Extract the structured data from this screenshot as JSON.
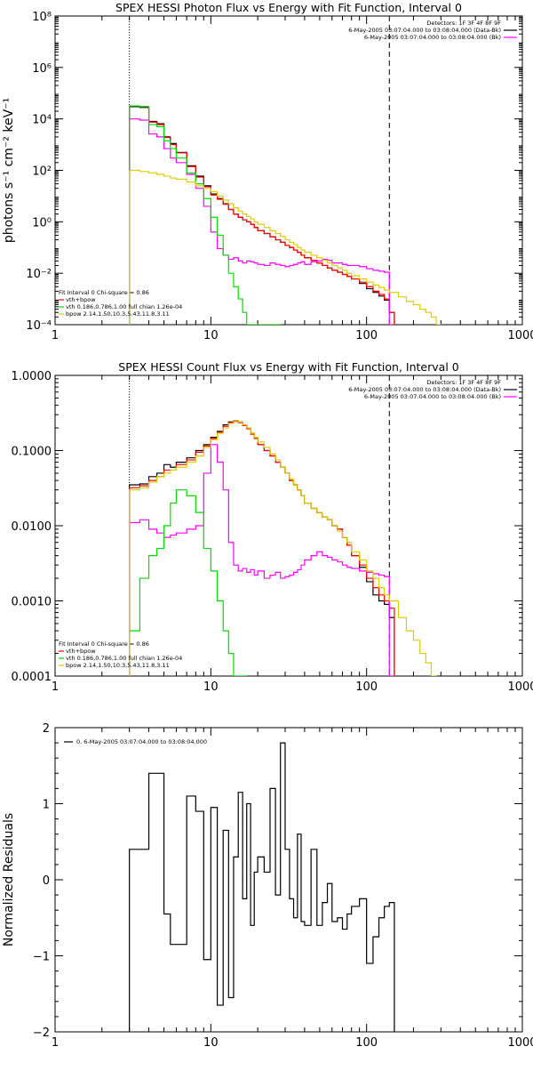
{
  "chart_data": [
    {
      "type": "line",
      "title": "SPEX HESSI Photon Flux vs Energy with Fit Function, Interval 0",
      "ylabel": "photons s⁻¹ cm⁻² keV⁻¹",
      "xlabel": "",
      "xscale": "log",
      "yscale": "log",
      "xlim": [
        1,
        1000
      ],
      "ylim": [
        0.0001,
        100000000
      ],
      "x_tick_labels": [
        "1",
        "10",
        "100",
        "1000"
      ],
      "y_tick_labels": [
        "10⁻⁴",
        "10⁻²",
        "10⁰",
        "10²",
        "10⁴",
        "10⁶",
        "10⁸"
      ],
      "legend_top_right": [
        "Detectors: 1F 3F 4F 8F 9F",
        "6-May-2005 03:07:04.000 to 03:08:04.000 (Data-Bk)",
        "6-May-2005 03:07:04.000 to 03:08:04.000 (Bk)"
      ],
      "legend_bottom_left": [
        "Fit Interval 0   Chi-square = 0.86",
        "vth+bpow",
        "vth 0.186,0.786,1.00  full chian 1.26e-04",
        "bpow 2.14,1.50,10.3,5.43,11.8,3.11"
      ],
      "vlines": [
        3,
        140
      ],
      "series": [
        {
          "color": "#000000",
          "x": [
            3,
            3.5,
            4,
            4.5,
            5,
            5.5,
            6,
            7,
            8,
            9,
            10,
            11,
            12,
            13,
            14,
            15,
            16,
            17,
            18,
            19,
            20,
            22,
            24,
            26,
            28,
            30,
            32,
            34,
            36,
            38,
            40,
            44,
            48,
            52,
            56,
            60,
            65,
            70,
            75,
            80,
            90,
            100,
            110,
            120,
            130,
            140
          ],
          "y": [
            30000,
            28000,
            8000,
            6500,
            2000,
            1100,
            500,
            150,
            60,
            25,
            12,
            8,
            5,
            3,
            2,
            1.5,
            1.2,
            1,
            0.8,
            0.6,
            0.45,
            0.35,
            0.26,
            0.2,
            0.16,
            0.12,
            0.1,
            0.08,
            0.065,
            0.05,
            0.04,
            0.032,
            0.025,
            0.02,
            0.016,
            0.013,
            0.011,
            0.009,
            0.0075,
            0.006,
            0.004,
            0.0025,
            0.0018,
            0.0013,
            0.0009,
            0.0003
          ]
        },
        {
          "color": "#ff0000",
          "x": [
            3,
            3.5,
            4,
            4.5,
            5,
            5.5,
            6,
            7,
            8,
            9,
            10,
            11,
            12,
            13,
            14,
            15,
            16,
            17,
            18,
            19,
            20,
            22,
            24,
            26,
            28,
            30,
            32,
            34,
            36,
            38,
            40,
            44,
            48,
            52,
            56,
            60,
            65,
            70,
            75,
            80,
            90,
            100,
            110,
            120,
            130,
            140
          ],
          "y": [
            32000,
            30000,
            7500,
            6000,
            1900,
            1000,
            480,
            140,
            55,
            23,
            11,
            7.5,
            4.8,
            3,
            2,
            1.5,
            1.2,
            1,
            0.8,
            0.6,
            0.45,
            0.35,
            0.26,
            0.2,
            0.16,
            0.12,
            0.1,
            0.08,
            0.065,
            0.05,
            0.04,
            0.032,
            0.025,
            0.02,
            0.016,
            0.013,
            0.011,
            0.009,
            0.0075,
            0.006,
            0.0045,
            0.003,
            0.002,
            0.0015,
            0.001,
            0.0003
          ]
        },
        {
          "color": "#ff00ff",
          "x": [
            3,
            3.5,
            4,
            4.5,
            5,
            5.5,
            6,
            7,
            8,
            9,
            10,
            11,
            12,
            13,
            14,
            15,
            16,
            17,
            18,
            19,
            20,
            22,
            24,
            26,
            28,
            30,
            32,
            34,
            36,
            38,
            40,
            44,
            48,
            52,
            56,
            60,
            65,
            70,
            75,
            80,
            90,
            100,
            110,
            120,
            130,
            140
          ],
          "y": [
            10000,
            9000,
            2600,
            2000,
            700,
            300,
            200,
            70,
            20,
            4,
            0.4,
            0.09,
            0.05,
            0.035,
            0.04,
            0.03,
            0.025,
            0.03,
            0.028,
            0.025,
            0.022,
            0.02,
            0.025,
            0.022,
            0.02,
            0.018,
            0.02,
            0.022,
            0.025,
            0.028,
            0.022,
            0.028,
            0.03,
            0.035,
            0.032,
            0.025,
            0.025,
            0.022,
            0.02,
            0.02,
            0.018,
            0.015,
            0.013,
            0.012,
            0.011,
            0.0001
          ]
        },
        {
          "color": "#00dd00",
          "x": [
            3,
            3.5,
            4,
            4.5,
            5,
            5.5,
            6,
            7,
            8,
            9,
            10,
            11,
            12,
            13,
            14,
            15,
            16,
            17,
            18,
            19,
            20,
            22,
            24,
            26
          ],
          "y": [
            32000,
            30000,
            6000,
            5000,
            1400,
            700,
            300,
            80,
            30,
            8,
            1.5,
            0.3,
            0.05,
            0.01,
            0.003,
            0.001,
            0.0003,
            0.0001,
            0.0001,
            0.0001,
            0.0001,
            0.0001,
            0.0001,
            0.0001
          ]
        },
        {
          "color": "#ddcc00",
          "x": [
            3,
            3.5,
            4,
            4.5,
            5,
            5.5,
            6,
            7,
            8,
            9,
            10,
            11,
            12,
            13,
            14,
            15,
            16,
            17,
            18,
            19,
            20,
            22,
            24,
            26,
            28,
            30,
            32,
            34,
            36,
            38,
            40,
            44,
            48,
            52,
            56,
            60,
            65,
            70,
            75,
            80,
            90,
            100,
            110,
            120,
            130,
            140,
            160,
            180,
            200,
            220,
            240,
            260,
            280
          ],
          "y": [
            100,
            90,
            80,
            70,
            60,
            50,
            45,
            35,
            25,
            20,
            15,
            10,
            7,
            5,
            3.5,
            2.6,
            2,
            1.6,
            1.3,
            1,
            0.8,
            0.6,
            0.45,
            0.35,
            0.27,
            0.2,
            0.16,
            0.13,
            0.1,
            0.08,
            0.065,
            0.05,
            0.04,
            0.032,
            0.025,
            0.02,
            0.016,
            0.013,
            0.01,
            0.008,
            0.006,
            0.0045,
            0.0035,
            0.0028,
            0.0022,
            0.0018,
            0.0012,
            0.0008,
            0.0006,
            0.0004,
            0.0003,
            0.0002,
            0.0001
          ]
        }
      ]
    },
    {
      "type": "line",
      "title": "SPEX HESSI Count Flux vs Energy with Fit Function, Interval 0",
      "ylabel": "",
      "xlabel": "",
      "xscale": "log",
      "yscale": "log",
      "xlim": [
        1,
        1000
      ],
      "ylim": [
        0.0001,
        1
      ],
      "x_tick_labels": [
        "1",
        "10",
        "100",
        "1000"
      ],
      "y_tick_labels": [
        "0.0001",
        "0.0010",
        "0.0100",
        "0.1000",
        "1.0000"
      ],
      "legend_top_right": [
        "Detectors: 1F 3F 4F 8F 9F",
        "6-May-2005 03:07:04.000 to 03:08:04.000 (Data-Bk)",
        "6-May-2005 03:07:04.000 to 03:08:04.000 (Bk)"
      ],
      "legend_bottom_left": [
        "Fit Interval 0   Chi-square = 0.86",
        "vth+bpow",
        "vth 0.186,0.786,1.00  full chian 1.26e-04",
        "bpow 2.14,1.50,10.3,5.43,11.8,3.11"
      ],
      "vlines": [
        3,
        140
      ],
      "series": [
        {
          "color": "#000000",
          "x": [
            3,
            3.5,
            4,
            4.5,
            5,
            5.5,
            6,
            7,
            8,
            9,
            10,
            11,
            12,
            13,
            14,
            15,
            16,
            17,
            18,
            19,
            20,
            22,
            24,
            26,
            28,
            30,
            32,
            34,
            36,
            38,
            40,
            44,
            48,
            52,
            56,
            60,
            65,
            70,
            75,
            80,
            90,
            100,
            110,
            120,
            130,
            140
          ],
          "y": [
            0.035,
            0.036,
            0.045,
            0.05,
            0.065,
            0.06,
            0.07,
            0.08,
            0.1,
            0.12,
            0.15,
            0.18,
            0.22,
            0.24,
            0.25,
            0.24,
            0.22,
            0.2,
            0.17,
            0.15,
            0.12,
            0.1,
            0.085,
            0.07,
            0.06,
            0.05,
            0.04,
            0.035,
            0.03,
            0.025,
            0.02,
            0.017,
            0.015,
            0.013,
            0.012,
            0.01,
            0.009,
            0.007,
            0.0055,
            0.004,
            0.0028,
            0.0018,
            0.0012,
            0.001,
            0.0009,
            0.0006
          ]
        },
        {
          "color": "#ff0000",
          "x": [
            3,
            3.5,
            4,
            4.5,
            5,
            5.5,
            6,
            7,
            8,
            9,
            10,
            11,
            12,
            13,
            14,
            15,
            16,
            17,
            18,
            19,
            20,
            22,
            24,
            26,
            28,
            30,
            32,
            34,
            36,
            38,
            40,
            44,
            48,
            52,
            56,
            60,
            65,
            70,
            75,
            80,
            90,
            100,
            110,
            120,
            130,
            140
          ],
          "y": [
            0.032,
            0.034,
            0.04,
            0.045,
            0.055,
            0.055,
            0.065,
            0.075,
            0.095,
            0.115,
            0.145,
            0.175,
            0.21,
            0.235,
            0.245,
            0.235,
            0.215,
            0.195,
            0.165,
            0.145,
            0.12,
            0.1,
            0.085,
            0.07,
            0.06,
            0.05,
            0.04,
            0.035,
            0.03,
            0.025,
            0.02,
            0.017,
            0.015,
            0.013,
            0.012,
            0.01,
            0.009,
            0.007,
            0.0055,
            0.004,
            0.003,
            0.002,
            0.0015,
            0.0012,
            0.001,
            0.0008
          ]
        },
        {
          "color": "#ff00ff",
          "x": [
            3,
            3.5,
            4,
            4.5,
            5,
            5.5,
            6,
            7,
            8,
            9,
            10,
            11,
            12,
            13,
            14,
            15,
            16,
            17,
            18,
            19,
            20,
            22,
            24,
            26,
            28,
            30,
            32,
            34,
            36,
            38,
            40,
            44,
            48,
            52,
            56,
            60,
            65,
            70,
            75,
            80,
            90,
            100,
            110,
            120,
            130,
            140
          ],
          "y": [
            0.011,
            0.012,
            0.009,
            0.008,
            0.007,
            0.0075,
            0.008,
            0.009,
            0.01,
            0.05,
            0.12,
            0.07,
            0.03,
            0.006,
            0.003,
            0.0025,
            0.0027,
            0.0024,
            0.0026,
            0.0022,
            0.0025,
            0.002,
            0.0022,
            0.0024,
            0.002,
            0.0021,
            0.0022,
            0.0024,
            0.0026,
            0.003,
            0.0035,
            0.004,
            0.0045,
            0.004,
            0.0038,
            0.0035,
            0.0033,
            0.003,
            0.0028,
            0.0027,
            0.0025,
            0.0024,
            0.0023,
            0.0022,
            0.0021,
            0.0001
          ]
        },
        {
          "color": "#00dd00",
          "x": [
            3,
            3.5,
            4,
            4.5,
            5,
            5.5,
            6,
            7,
            8,
            9,
            10,
            11,
            12,
            13,
            14,
            15,
            16
          ],
          "y": [
            0.0004,
            0.002,
            0.004,
            0.005,
            0.01,
            0.02,
            0.03,
            0.025,
            0.015,
            0.005,
            0.0025,
            0.001,
            0.0004,
            0.0002,
            0.0001,
            0.0001,
            0.0001
          ]
        },
        {
          "color": "#ddcc00",
          "x": [
            3,
            3.5,
            4,
            4.5,
            5,
            5.5,
            6,
            7,
            8,
            9,
            10,
            11,
            12,
            13,
            14,
            15,
            16,
            17,
            18,
            19,
            20,
            22,
            24,
            26,
            28,
            30,
            32,
            34,
            36,
            38,
            40,
            44,
            48,
            52,
            56,
            60,
            65,
            70,
            75,
            80,
            90,
            100,
            110,
            120,
            130,
            140,
            160,
            180,
            200,
            220,
            240,
            260
          ],
          "y": [
            0.03,
            0.032,
            0.038,
            0.045,
            0.05,
            0.055,
            0.06,
            0.07,
            0.085,
            0.11,
            0.14,
            0.17,
            0.2,
            0.23,
            0.25,
            0.24,
            0.22,
            0.2,
            0.17,
            0.15,
            0.13,
            0.11,
            0.09,
            0.075,
            0.06,
            0.05,
            0.042,
            0.035,
            0.03,
            0.025,
            0.02,
            0.017,
            0.015,
            0.013,
            0.012,
            0.01,
            0.0085,
            0.007,
            0.006,
            0.0045,
            0.0035,
            0.0025,
            0.002,
            0.0015,
            0.0012,
            0.001,
            0.0006,
            0.0004,
            0.0003,
            0.0002,
            0.00015,
            0.0001
          ]
        }
      ]
    },
    {
      "type": "line",
      "title": "",
      "ylabel": "Normalized Residuals",
      "xlabel": "",
      "xscale": "log",
      "yscale": "linear",
      "xlim": [
        1,
        1000
      ],
      "ylim": [
        -2,
        2
      ],
      "x_tick_labels": [
        "1",
        "10",
        "100",
        "1000"
      ],
      "y_tick_labels": [
        "−2",
        "−1",
        "0",
        "1",
        "2"
      ],
      "legend_top_left": [
        "0.  6-May-2005 03:07:04.000 to 03:08:04.000"
      ],
      "vlines": [],
      "series": [
        {
          "color": "#000000",
          "x": [
            3,
            3.5,
            4,
            4.5,
            5,
            5.5,
            6,
            7,
            8,
            9,
            10,
            11,
            12,
            13,
            14,
            15,
            16,
            17,
            18,
            19,
            20,
            22,
            24,
            26,
            28,
            30,
            32,
            34,
            36,
            38,
            40,
            44,
            48,
            52,
            56,
            60,
            65,
            70,
            75,
            80,
            90,
            100,
            110,
            120,
            130,
            140
          ],
          "y": [
            0.4,
            0.4,
            1.4,
            1.4,
            -0.45,
            -0.85,
            -0.85,
            1.1,
            0.9,
            -1.05,
            0.95,
            -1.65,
            0.65,
            -1.55,
            0.3,
            1.15,
            -0.25,
            1.0,
            -0.6,
            0.1,
            0.3,
            0.1,
            1.2,
            -0.2,
            1.8,
            0.4,
            -0.25,
            -0.5,
            0.6,
            -0.55,
            -0.6,
            0.4,
            -0.6,
            -0.3,
            -0.05,
            -0.55,
            -0.5,
            -0.65,
            -0.45,
            -0.35,
            -0.25,
            -1.1,
            -0.75,
            -0.5,
            -0.35,
            -0.3
          ]
        }
      ]
    }
  ]
}
